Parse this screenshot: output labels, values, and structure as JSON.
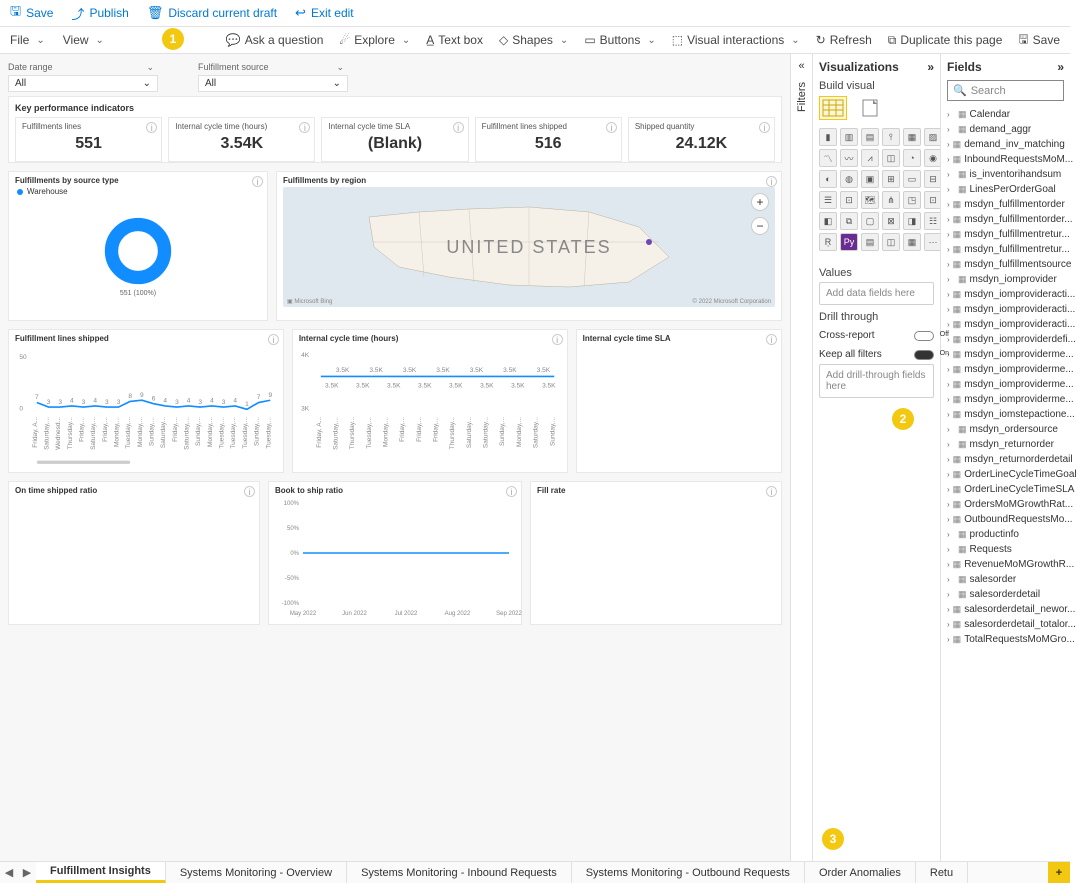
{
  "top_toolbar": {
    "save": "Save",
    "publish": "Publish",
    "discard": "Discard current draft",
    "exit": "Exit edit"
  },
  "second_toolbar": {
    "file": "File",
    "view": "View",
    "ask": "Ask a question",
    "explore": "Explore",
    "textbox": "Text box",
    "shapes": "Shapes",
    "buttons": "Buttons",
    "visual_interactions": "Visual interactions",
    "refresh": "Refresh",
    "duplicate": "Duplicate this page",
    "save2": "Save"
  },
  "callouts": [
    "1",
    "2",
    "3"
  ],
  "panes": {
    "filters": "Filters",
    "visualizations": "Visualizations",
    "build_visual": "Build visual",
    "values": "Values",
    "values_placeholder": "Add data fields here",
    "drill_through": "Drill through",
    "cross_report": "Cross-report",
    "keep_filters": "Keep all filters",
    "drill_placeholder": "Add drill-through fields here",
    "fields_title": "Fields",
    "search": "Search"
  },
  "fields": [
    "Calendar",
    "demand_aggr",
    "demand_inv_matching",
    "InboundRequestsMoM...",
    "is_inventorihandsum",
    "LinesPerOrderGoal",
    "msdyn_fulfillmentorder",
    "msdyn_fulfillmentorder...",
    "msdyn_fulfillmentretur...",
    "msdyn_fulfillmentretur...",
    "msdyn_fulfillmentsource",
    "msdyn_iomprovider",
    "msdyn_iomprovideracti...",
    "msdyn_iomprovideracti...",
    "msdyn_iomprovideracti...",
    "msdyn_iomproviderdefi...",
    "msdyn_iomproviderme...",
    "msdyn_iomproviderme...",
    "msdyn_iomproviderme...",
    "msdyn_iomproviderme...",
    "msdyn_iomstepactione...",
    "msdyn_ordersource",
    "msdyn_returnorder",
    "msdyn_returnorderdetail",
    "OrderLineCycleTimeGoal",
    "OrderLineCycleTimeSLA",
    "OrdersMoMGrowthRat...",
    "OutboundRequestsMo...",
    "productinfo",
    "Requests",
    "RevenueMoMGrowthR...",
    "salesorder",
    "salesorderdetail",
    "salesorderdetail_newor...",
    "salesorderdetail_totalor...",
    "TotalRequestsMoMGro..."
  ],
  "slicers": {
    "date_range": {
      "label": "Date range",
      "value": "All"
    },
    "fulfillment_source": {
      "label": "Fulfillment source",
      "value": "All"
    }
  },
  "kpi_section": {
    "title": "Key performance indicators",
    "cards": [
      {
        "label": "Fulfillments lines",
        "value": "551"
      },
      {
        "label": "Internal cycle time (hours)",
        "value": "3.54K"
      },
      {
        "label": "Internal cycle time SLA",
        "value": "(Blank)"
      },
      {
        "label": "Fulfillment lines shipped",
        "value": "516"
      },
      {
        "label": "Shipped quantity",
        "value": "24.12K"
      }
    ]
  },
  "charts_row1": {
    "donut": {
      "title": "Fulfillments by source type",
      "legend": "Warehouse",
      "label": "551 (100%)",
      "color": "#118dff"
    },
    "map": {
      "title": "Fulfillments by region",
      "center_label": "UNITED STATES",
      "attribution": "© 2022 Microsoft Corporation"
    }
  },
  "charts_row2": {
    "lines_shipped": {
      "title": "Fulfillment lines shipped",
      "ymax": 50,
      "data": [
        7,
        3,
        3,
        4,
        3,
        4,
        3,
        3,
        8,
        9,
        6,
        4,
        3,
        4,
        3,
        4,
        3,
        4,
        1,
        7,
        9
      ],
      "x_labels": [
        "Friday, A...",
        "Saturday,...",
        "Wednesd...",
        "Thursday...",
        "Friday,...",
        "Saturday,...",
        "Friday,...",
        "Monday,...",
        "Tuesday,...",
        "Monday,...",
        "Sunday,...",
        "Saturday...",
        "Friday,...",
        "Saturday,...",
        "Sunday,...",
        "Monday,...",
        "Tuesday,...",
        "Tuesday,...",
        "Tuesday,...",
        "Sunday,...",
        "Tuesday,..."
      ],
      "color": "#118dff"
    },
    "cycle_time": {
      "title": "Internal cycle time (hours)",
      "ymax": 4000,
      "ymin": 3000,
      "labels_top": [
        "3.5K",
        "3.5K",
        "3.5K",
        "3.5K",
        "3.5K",
        "3.5K",
        "3.5K"
      ],
      "labels_bot": [
        "3.5K",
        "3.5K",
        "3.5K",
        "3.5K",
        "3.5K",
        "3.5K",
        "3.5K",
        "3.5K"
      ],
      "x_labels": [
        "Friday, A...",
        "Saturday,...",
        "Thursday...",
        "Tuesday,...",
        "Monday,...",
        "Friday,...",
        "Friday,...",
        "Friday,...",
        "Thursday...",
        "Saturday...",
        "Saturday...",
        "Sunday,...",
        "Monday,...",
        "Saturday...",
        "Sunday,..."
      ],
      "color": "#118dff"
    },
    "sla": {
      "title": "Internal cycle time SLA"
    }
  },
  "charts_row3": {
    "ontime": {
      "title": "On time shipped ratio"
    },
    "book_to_ship": {
      "title": "Book to ship ratio",
      "yticks": [
        "100%",
        "50%",
        "0%",
        "-50%",
        "-100%"
      ],
      "x_labels": [
        "May 2022",
        "Jun 2022",
        "Jul 2022",
        "Aug 2022",
        "Sep 2022"
      ],
      "value": 0,
      "color": "#118dff"
    },
    "fill_rate": {
      "title": "Fill rate"
    }
  },
  "tabs": [
    "Fulfillment Insights",
    "Systems Monitoring - Overview",
    "Systems Monitoring - Inbound Requests",
    "Systems Monitoring - Outbound Requests",
    "Order Anomalies",
    "Retu"
  ],
  "active_tab": 0,
  "colors": {
    "accent": "#0078d4",
    "warn": "#f2c811",
    "chart_blue": "#118dff",
    "grid": "#e8e8e8",
    "text_muted": "#888"
  }
}
